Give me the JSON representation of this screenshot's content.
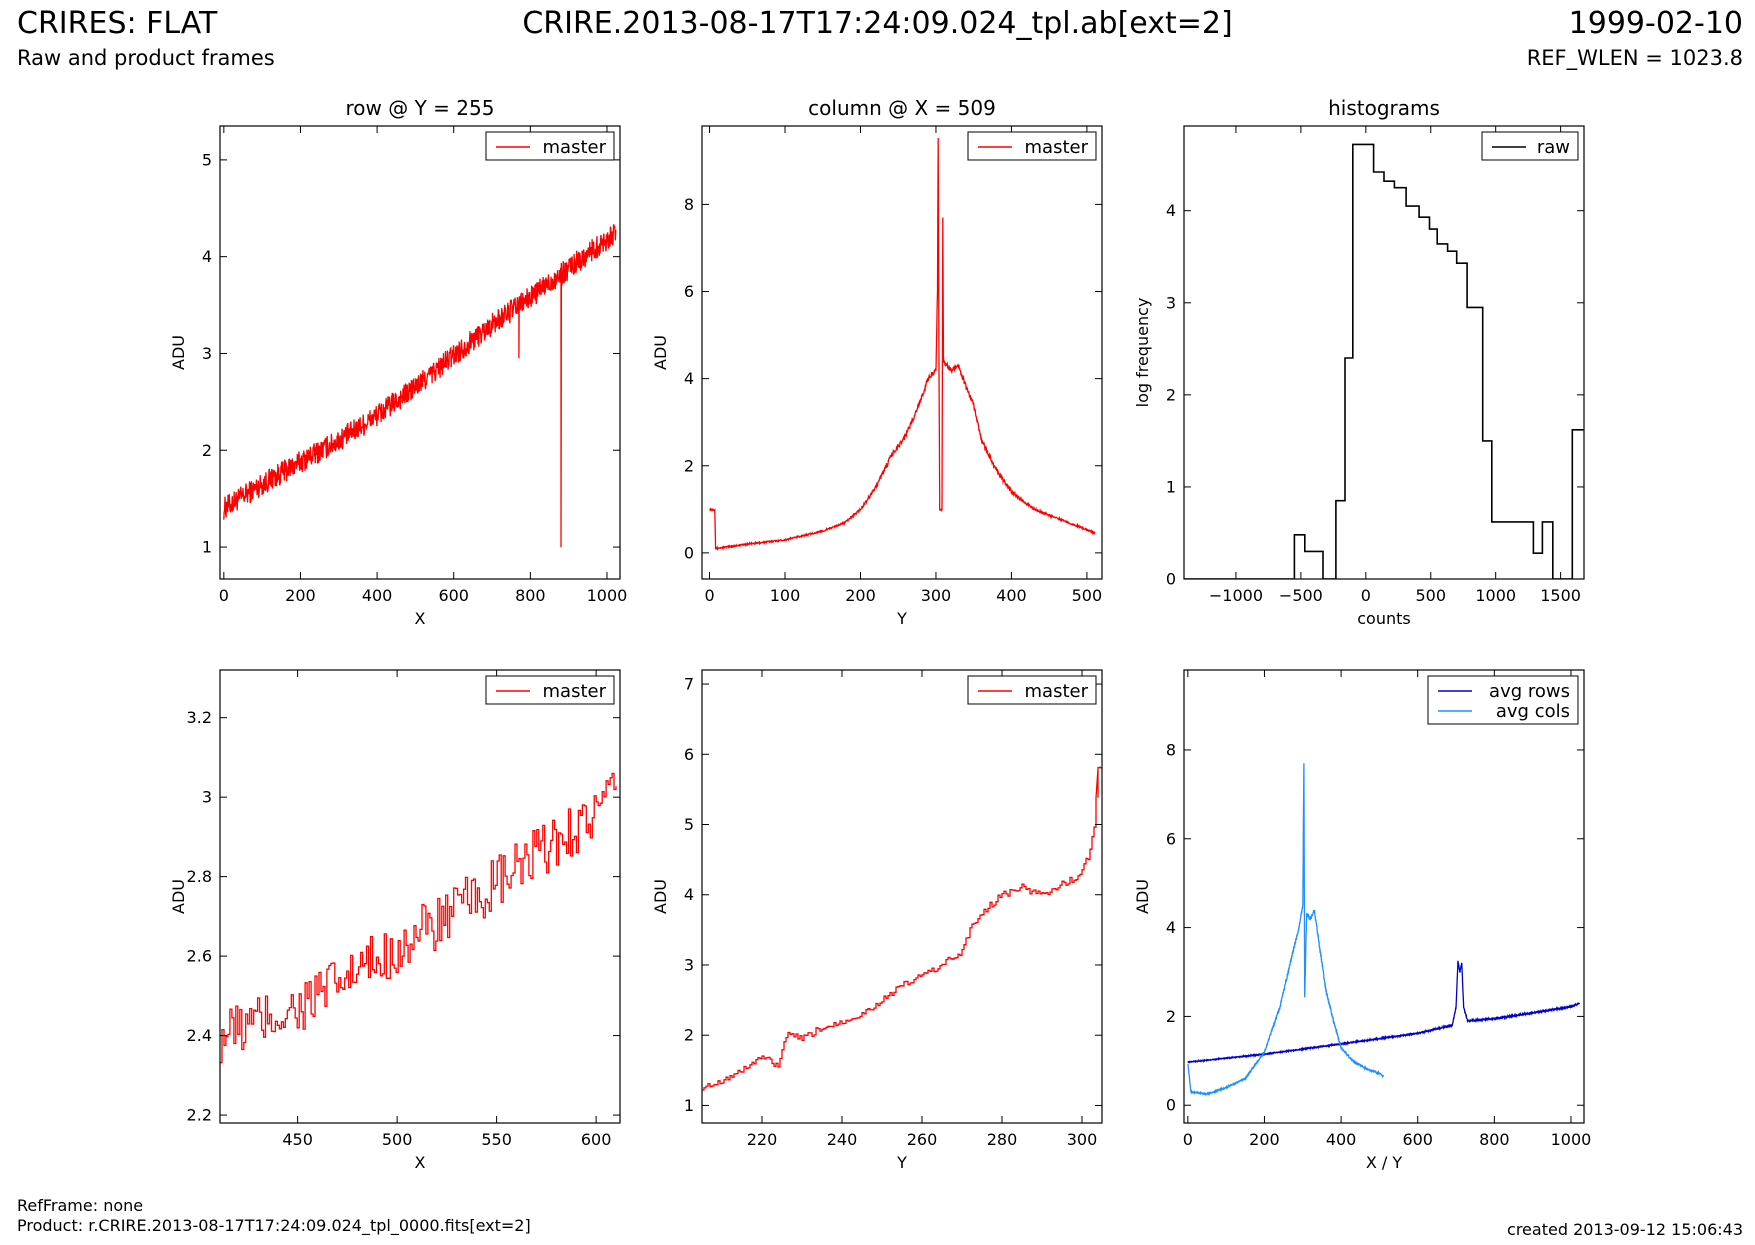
{
  "header": {
    "title_left": "CRIRES: FLAT",
    "title_center": "CRIRE.2013-08-17T17:24:09.024_tpl.ab[ext=2]",
    "title_right": "1999-02-10",
    "subtitle_left": "Raw and product frames",
    "subtitle_right": "REF_WLEN = 1023.8"
  },
  "footer": {
    "ref_frame": "RefFrame: none",
    "product": "Product: r.CRIRE.2013-08-17T17:24:09.024_tpl_0000.fits[ext=2]",
    "created": "created 2013-09-12 15:06:43"
  },
  "colors": {
    "master": "#ff0000",
    "raw": "#000000",
    "avg_rows": "#0000cc",
    "avg_cols": "#1e90ff"
  },
  "chart_data": [
    {
      "id": "row-full",
      "type": "line",
      "title": "row @ Y = 255",
      "xlabel": "X",
      "ylabel": "ADU",
      "xlim": [
        -10,
        1034
      ],
      "ylim": [
        0.67,
        5.35
      ],
      "xticks": [
        0,
        200,
        400,
        600,
        800,
        1000
      ],
      "yticks": [
        1,
        2,
        3,
        4,
        5
      ],
      "legend": [
        "master"
      ],
      "series": [
        {
          "name": "master",
          "color": "#ff0000",
          "trend": [
            [
              0,
              1.4
            ],
            [
              100,
              1.65
            ],
            [
              200,
              1.88
            ],
            [
              300,
              2.1
            ],
            [
              400,
              2.36
            ],
            [
              500,
              2.65
            ],
            [
              600,
              2.98
            ],
            [
              700,
              3.3
            ],
            [
              800,
              3.58
            ],
            [
              900,
              3.88
            ],
            [
              1023,
              4.25
            ]
          ],
          "noise": 0.12,
          "spikes": [
            [
              770,
              2.95
            ],
            [
              880,
              1.0
            ],
            [
              882,
              3.7
            ]
          ]
        }
      ]
    },
    {
      "id": "col-full",
      "type": "line",
      "title": "column @ X = 509",
      "xlabel": "Y",
      "ylabel": "ADU",
      "xlim": [
        -10,
        520
      ],
      "ylim": [
        -0.6,
        9.8
      ],
      "xticks": [
        0,
        100,
        200,
        300,
        400,
        500
      ],
      "yticks": [
        0,
        2,
        4,
        6,
        8
      ],
      "legend": [
        "master"
      ],
      "series": [
        {
          "name": "master",
          "color": "#ff0000",
          "points": [
            [
              0,
              1.0
            ],
            [
              7,
              1.0
            ],
            [
              8,
              0.1
            ],
            [
              50,
              0.2
            ],
            [
              100,
              0.3
            ],
            [
              150,
              0.5
            ],
            [
              180,
              0.7
            ],
            [
              200,
              1.0
            ],
            [
              220,
              1.5
            ],
            [
              240,
              2.2
            ],
            [
              260,
              2.7
            ],
            [
              275,
              3.3
            ],
            [
              290,
              4.0
            ],
            [
              300,
              4.2
            ],
            [
              302,
              6.0
            ],
            [
              303,
              9.5
            ],
            [
              304,
              4.2
            ],
            [
              305,
              1.0
            ],
            [
              308,
              1.0
            ],
            [
              309,
              7.7
            ],
            [
              310,
              4.4
            ],
            [
              320,
              4.2
            ],
            [
              330,
              4.3
            ],
            [
              340,
              3.8
            ],
            [
              350,
              3.4
            ],
            [
              360,
              2.6
            ],
            [
              380,
              1.9
            ],
            [
              400,
              1.4
            ],
            [
              430,
              1.0
            ],
            [
              460,
              0.8
            ],
            [
              490,
              0.6
            ],
            [
              511,
              0.45
            ]
          ]
        }
      ]
    },
    {
      "id": "histograms",
      "type": "histogram",
      "title": "histograms",
      "xlabel": "counts",
      "ylabel": "log frequency",
      "xlim": [
        -1400,
        1680
      ],
      "ylim": [
        0,
        4.92
      ],
      "xticks": [
        -1000,
        -500,
        0,
        500,
        1000,
        1500
      ],
      "yticks": [
        0,
        1,
        2,
        3,
        4
      ],
      "legend": [
        "raw"
      ],
      "series": [
        {
          "name": "raw",
          "color": "#000000",
          "steps": [
            [
              -1400,
              0
            ],
            [
              -550,
              0.48
            ],
            [
              -470,
              0.3
            ],
            [
              -330,
              0
            ],
            [
              -230,
              0.85
            ],
            [
              -160,
              2.4
            ],
            [
              -100,
              4.72
            ],
            [
              60,
              4.42
            ],
            [
              140,
              4.32
            ],
            [
              220,
              4.25
            ],
            [
              310,
              4.05
            ],
            [
              410,
              3.93
            ],
            [
              490,
              3.8
            ],
            [
              550,
              3.64
            ],
            [
              630,
              3.56
            ],
            [
              700,
              3.43
            ],
            [
              780,
              2.95
            ],
            [
              900,
              1.5
            ],
            [
              970,
              0.62
            ],
            [
              1170,
              0.62
            ],
            [
              1290,
              0.28
            ],
            [
              1360,
              0.62
            ],
            [
              1440,
              0
            ],
            [
              1590,
              1.62
            ],
            [
              1680,
              1.62
            ]
          ]
        }
      ]
    },
    {
      "id": "row-zoom",
      "type": "line",
      "title": "",
      "xlabel": "X",
      "ylabel": "ADU",
      "xlim": [
        411,
        612
      ],
      "ylim": [
        2.18,
        3.32
      ],
      "xticks": [
        450,
        500,
        550,
        600
      ],
      "yticks": [
        2.2,
        2.4,
        2.6,
        2.8,
        3.0,
        3.2
      ],
      "legend": [
        "master"
      ],
      "series": [
        {
          "name": "master",
          "color": "#ff0000",
          "trend": [
            [
              411,
              2.4
            ],
            [
              450,
              2.47
            ],
            [
              500,
              2.62
            ],
            [
              550,
              2.78
            ],
            [
              610,
              3.0
            ]
          ],
          "noise": 0.07,
          "steps_style": true
        }
      ]
    },
    {
      "id": "col-zoom",
      "type": "line",
      "title": "",
      "xlabel": "Y",
      "ylabel": "ADU",
      "xlim": [
        205,
        305
      ],
      "ylim": [
        0.75,
        7.2
      ],
      "xticks": [
        220,
        240,
        260,
        280,
        300
      ],
      "yticks": [
        1,
        2,
        3,
        4,
        5,
        6,
        7
      ],
      "legend": [
        "master"
      ],
      "series": [
        {
          "name": "master",
          "color": "#ff0000",
          "points": [
            [
              205,
              1.25
            ],
            [
              210,
              1.35
            ],
            [
              215,
              1.5
            ],
            [
              220,
              1.7
            ],
            [
              224,
              1.55
            ],
            [
              226,
              2.0
            ],
            [
              230,
              1.95
            ],
            [
              235,
              2.1
            ],
            [
              240,
              2.2
            ],
            [
              245,
              2.3
            ],
            [
              250,
              2.5
            ],
            [
              255,
              2.7
            ],
            [
              260,
              2.85
            ],
            [
              265,
              3.0
            ],
            [
              270,
              3.2
            ],
            [
              272,
              3.5
            ],
            [
              275,
              3.75
            ],
            [
              280,
              4.0
            ],
            [
              285,
              4.1
            ],
            [
              290,
              4.0
            ],
            [
              295,
              4.15
            ],
            [
              299,
              4.25
            ],
            [
              302,
              4.6
            ],
            [
              303,
              5.0
            ],
            [
              304,
              5.8
            ],
            [
              305,
              5.8
            ]
          ],
          "noise": 0.05,
          "steps_style": true
        }
      ]
    },
    {
      "id": "averages",
      "type": "line",
      "title": "",
      "xlabel": "X / Y",
      "ylabel": "ADU",
      "xlim": [
        -10,
        1034
      ],
      "ylim": [
        -0.4,
        9.8
      ],
      "xticks": [
        0,
        200,
        400,
        600,
        800,
        1000
      ],
      "yticks": [
        0,
        2,
        4,
        6,
        8
      ],
      "legend": [
        "avg rows",
        "avg cols"
      ],
      "series": [
        {
          "name": "avg rows",
          "color": "#0000cc",
          "points": [
            [
              0,
              0.97
            ],
            [
              200,
              1.15
            ],
            [
              400,
              1.38
            ],
            [
              600,
              1.62
            ],
            [
              690,
              1.8
            ],
            [
              700,
              2.2
            ],
            [
              705,
              3.25
            ],
            [
              710,
              3.0
            ],
            [
              715,
              3.2
            ],
            [
              720,
              2.2
            ],
            [
              730,
              1.9
            ],
            [
              800,
              1.95
            ],
            [
              900,
              2.08
            ],
            [
              1000,
              2.22
            ],
            [
              1023,
              2.3
            ]
          ],
          "noise": 0.015
        },
        {
          "name": "avg cols",
          "color": "#1e90ff",
          "points": [
            [
              0,
              0.95
            ],
            [
              8,
              0.3
            ],
            [
              50,
              0.25
            ],
            [
              100,
              0.4
            ],
            [
              150,
              0.6
            ],
            [
              200,
              1.2
            ],
            [
              240,
              2.2
            ],
            [
              270,
              3.3
            ],
            [
              290,
              4.0
            ],
            [
              300,
              4.5
            ],
            [
              303,
              7.7
            ],
            [
              305,
              2.4
            ],
            [
              310,
              4.3
            ],
            [
              320,
              4.2
            ],
            [
              330,
              4.4
            ],
            [
              340,
              3.8
            ],
            [
              360,
              2.6
            ],
            [
              380,
              1.9
            ],
            [
              400,
              1.3
            ],
            [
              430,
              1.0
            ],
            [
              470,
              0.8
            ],
            [
              500,
              0.72
            ],
            [
              511,
              0.65
            ]
          ],
          "noise": 0.04
        }
      ]
    }
  ]
}
